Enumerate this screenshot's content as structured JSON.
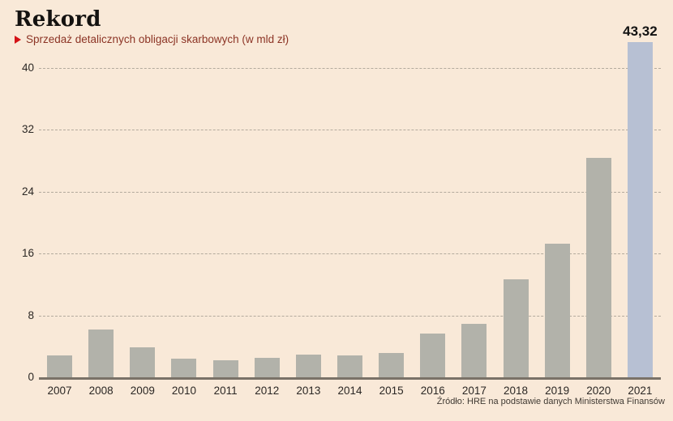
{
  "header": {
    "title": "Rekord",
    "subtitle": "Sprzedaż detalicznych obligacji skarbowych (w mld zł)"
  },
  "chart_data": {
    "type": "bar",
    "title": "Rekord",
    "subtitle": "Sprzedaż detalicznych obligacji skarbowych (w mld zł)",
    "unit": "mld zł",
    "categories": [
      "2007",
      "2008",
      "2009",
      "2010",
      "2011",
      "2012",
      "2013",
      "2014",
      "2015",
      "2016",
      "2017",
      "2018",
      "2019",
      "2020",
      "2021"
    ],
    "values": [
      2.8,
      6.2,
      3.9,
      2.4,
      2.2,
      2.5,
      2.9,
      2.8,
      3.1,
      5.7,
      6.9,
      12.7,
      17.3,
      28.4,
      43.32
    ],
    "highlight_category": "2021",
    "annotation": {
      "category": "2021",
      "text": "43,32"
    },
    "yticks": [
      0,
      8,
      16,
      24,
      32,
      40
    ],
    "ylim": [
      0,
      45
    ],
    "xlabel": "",
    "ylabel": "",
    "grid": "horizontal-dashed",
    "legend": "none",
    "source": "Źródło: HRE na podstawie danych Ministerstwa Finansów"
  },
  "colors": {
    "background": "#f9e9d8",
    "bar": "#b2b2aa",
    "bar_highlight": "#b7c0d3",
    "axis_line": "#7a7268",
    "gridline": "#b3aa9d",
    "title": "#141210",
    "subtitle_text": "#8c3425",
    "bullet": "#d41217",
    "tick_label": "#2b2724",
    "annotation": "#121212",
    "source_text": "#403a33"
  }
}
